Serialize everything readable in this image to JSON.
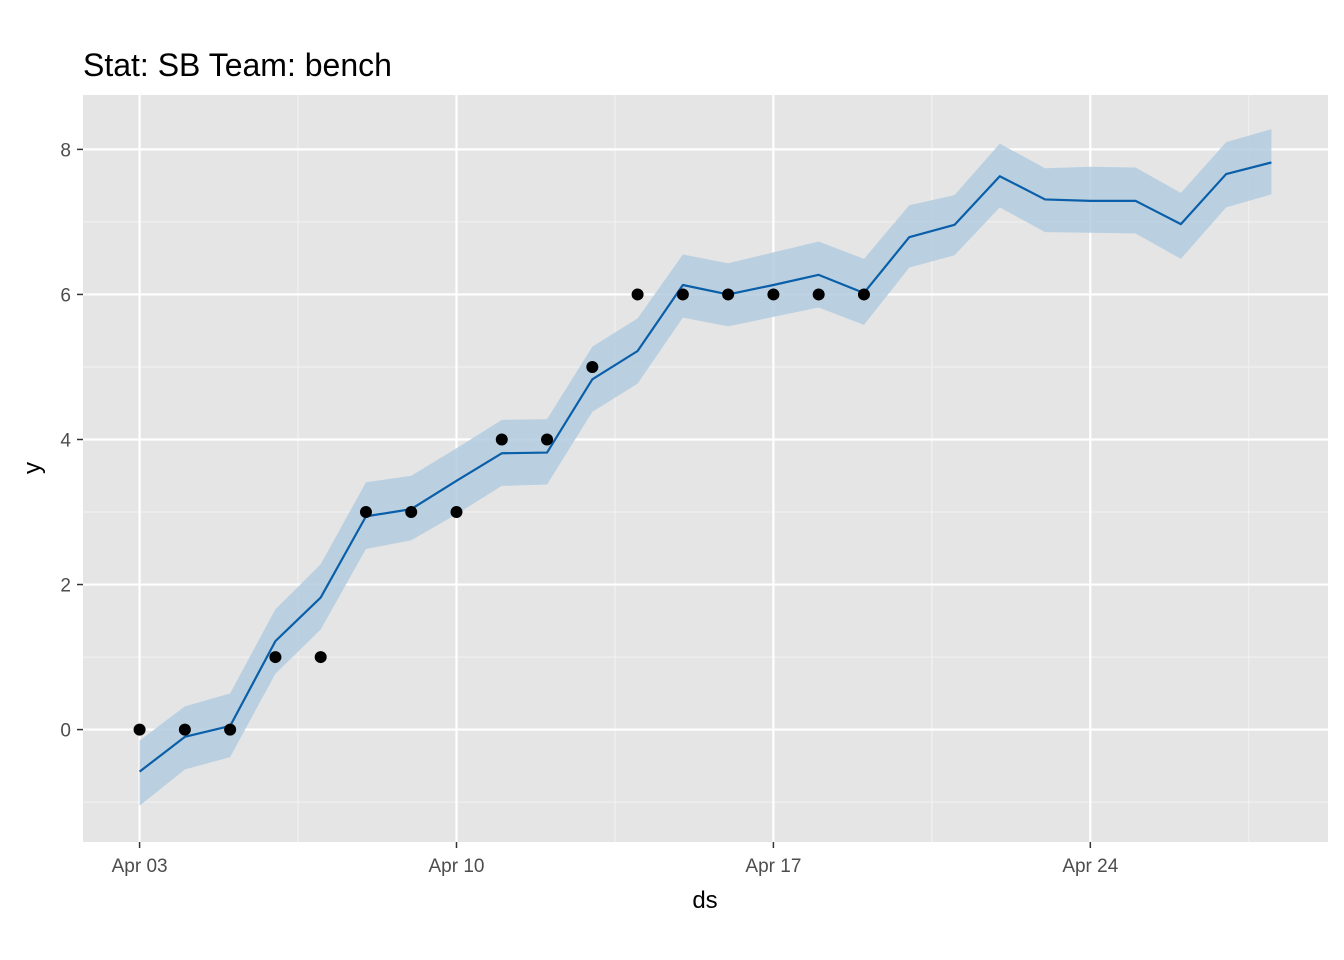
{
  "chart_data": {
    "type": "line",
    "title": "Stat: SB Team: bench",
    "xlabel": "ds",
    "ylabel": "y",
    "x_ticks": [
      {
        "date": "2023-04-03",
        "label": "Apr 03"
      },
      {
        "date": "2023-04-10",
        "label": "Apr 10"
      },
      {
        "date": "2023-04-17",
        "label": "Apr 17"
      },
      {
        "date": "2023-04-24",
        "label": "Apr 24"
      }
    ],
    "y_ticks": [
      0,
      2,
      4,
      6,
      8
    ],
    "xlim": [
      "2023-04-01T18:00",
      "2023-04-29T06:00"
    ],
    "ylim": [
      -1.55,
      8.75
    ],
    "grid": true,
    "panel_background": "#e5e5e5",
    "series": [
      {
        "type": "scatter",
        "color": "#000000",
        "points": [
          {
            "x": "2023-04-03",
            "y": 0
          },
          {
            "x": "2023-04-04",
            "y": 0
          },
          {
            "x": "2023-04-05",
            "y": 0
          },
          {
            "x": "2023-04-06",
            "y": 1
          },
          {
            "x": "2023-04-07",
            "y": 1
          },
          {
            "x": "2023-04-08",
            "y": 3
          },
          {
            "x": "2023-04-09",
            "y": 3
          },
          {
            "x": "2023-04-10",
            "y": 3
          },
          {
            "x": "2023-04-11",
            "y": 4
          },
          {
            "x": "2023-04-12",
            "y": 4
          },
          {
            "x": "2023-04-13",
            "y": 5
          },
          {
            "x": "2023-04-14",
            "y": 6
          },
          {
            "x": "2023-04-15",
            "y": 6
          },
          {
            "x": "2023-04-16",
            "y": 6
          },
          {
            "x": "2023-04-17",
            "y": 6
          },
          {
            "x": "2023-04-18",
            "y": 6
          },
          {
            "x": "2023-04-19",
            "y": 6
          }
        ]
      },
      {
        "type": "line",
        "color": "#0a5fa8",
        "band_color": "#b3cde0",
        "points": [
          {
            "x": "2023-04-03",
            "y": -0.58,
            "lower": -1.05,
            "upper": -0.15
          },
          {
            "x": "2023-04-04",
            "y": -0.1,
            "lower": -0.55,
            "upper": 0.32
          },
          {
            "x": "2023-04-05",
            "y": 0.05,
            "lower": -0.38,
            "upper": 0.5
          },
          {
            "x": "2023-04-06",
            "y": 1.22,
            "lower": 0.77,
            "upper": 1.66
          },
          {
            "x": "2023-04-07",
            "y": 1.82,
            "lower": 1.38,
            "upper": 2.28
          },
          {
            "x": "2023-04-08",
            "y": 2.94,
            "lower": 2.49,
            "upper": 3.41
          },
          {
            "x": "2023-04-09",
            "y": 3.04,
            "lower": 2.61,
            "upper": 3.5
          },
          {
            "x": "2023-04-10",
            "y": 3.43,
            "lower": 2.97,
            "upper": 3.88
          },
          {
            "x": "2023-04-11",
            "y": 3.81,
            "lower": 3.36,
            "upper": 4.27
          },
          {
            "x": "2023-04-12",
            "y": 3.82,
            "lower": 3.38,
            "upper": 4.28
          },
          {
            "x": "2023-04-13",
            "y": 4.83,
            "lower": 4.38,
            "upper": 5.28
          },
          {
            "x": "2023-04-14",
            "y": 5.22,
            "lower": 4.77,
            "upper": 5.67
          },
          {
            "x": "2023-04-15",
            "y": 6.13,
            "lower": 5.68,
            "upper": 6.55
          },
          {
            "x": "2023-04-16",
            "y": 6.0,
            "lower": 5.56,
            "upper": 6.43
          },
          {
            "x": "2023-04-17",
            "y": 6.13,
            "lower": 5.69,
            "upper": 6.58
          },
          {
            "x": "2023-04-18",
            "y": 6.27,
            "lower": 5.82,
            "upper": 6.73
          },
          {
            "x": "2023-04-19",
            "y": 6.02,
            "lower": 5.58,
            "upper": 6.49
          },
          {
            "x": "2023-04-20",
            "y": 6.79,
            "lower": 6.37,
            "upper": 7.23
          },
          {
            "x": "2023-04-21",
            "y": 6.96,
            "lower": 6.54,
            "upper": 7.37
          },
          {
            "x": "2023-04-22",
            "y": 7.63,
            "lower": 7.2,
            "upper": 8.08
          },
          {
            "x": "2023-04-23",
            "y": 7.31,
            "lower": 6.86,
            "upper": 7.74
          },
          {
            "x": "2023-04-24",
            "y": 7.29,
            "lower": 6.85,
            "upper": 7.76
          },
          {
            "x": "2023-04-25",
            "y": 7.29,
            "lower": 6.84,
            "upper": 7.75
          },
          {
            "x": "2023-04-26",
            "y": 6.97,
            "lower": 6.49,
            "upper": 7.4
          },
          {
            "x": "2023-04-27",
            "y": 7.66,
            "lower": 7.2,
            "upper": 8.1
          },
          {
            "x": "2023-04-28",
            "y": 7.82,
            "lower": 7.38,
            "upper": 8.28
          }
        ]
      }
    ]
  }
}
